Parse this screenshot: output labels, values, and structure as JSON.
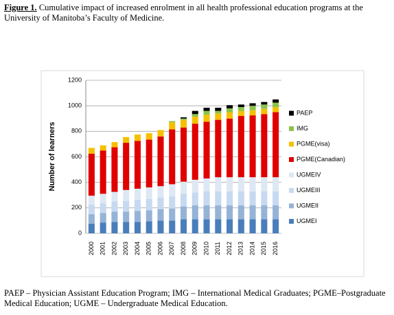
{
  "caption": {
    "label": "Figure 1.",
    "text": "Cumulative impact of increased enrolment in all health professional education programs at the University of Manitoba’s Faculty of Medicine."
  },
  "chart_data": {
    "type": "stacked_bar",
    "y_label": "Number of learners",
    "categories": [
      "2000",
      "2001",
      "2002",
      "2003",
      "2004",
      "2005",
      "2006",
      "2007",
      "2008",
      "2009",
      "2010",
      "2011",
      "2012",
      "2013",
      "2014",
      "2015",
      "2016"
    ],
    "series": [
      {
        "name": "UGMEI",
        "color": "#4a7ebb",
        "values": [
          75,
          85,
          90,
          90,
          90,
          95,
          100,
          100,
          110,
          110,
          110,
          110,
          110,
          110,
          110,
          110,
          110
        ]
      },
      {
        "name": "UGMEII",
        "color": "#95b3d7",
        "values": [
          75,
          75,
          80,
          80,
          85,
          85,
          90,
          95,
          100,
          110,
          110,
          110,
          110,
          110,
          110,
          110,
          110
        ]
      },
      {
        "name": "UGMEIII",
        "color": "#c6d9f1",
        "values": [
          75,
          75,
          80,
          85,
          90,
          90,
          90,
          95,
          100,
          100,
          110,
          110,
          110,
          110,
          110,
          110,
          110
        ]
      },
      {
        "name": "UGMEIV",
        "color": "#dde8f4",
        "values": [
          70,
          75,
          75,
          85,
          85,
          90,
          90,
          95,
          95,
          100,
          100,
          110,
          110,
          110,
          110,
          110,
          110
        ]
      },
      {
        "name": "PGME(Canadian)",
        "color": "#e00000",
        "values": [
          330,
          340,
          350,
          370,
          375,
          375,
          390,
          430,
          425,
          440,
          445,
          450,
          460,
          480,
          485,
          495,
          510
        ]
      },
      {
        "name": "PGME(visa)",
        "color": "#f5c000",
        "values": [
          45,
          40,
          40,
          45,
          50,
          50,
          50,
          55,
          60,
          55,
          55,
          50,
          50,
          40,
          40,
          40,
          40
        ]
      },
      {
        "name": "IMG",
        "color": "#8bc34a",
        "values": [
          0,
          0,
          0,
          0,
          0,
          0,
          0,
          10,
          10,
          20,
          30,
          20,
          30,
          30,
          35,
          35,
          35
        ]
      },
      {
        "name": "PAEP",
        "color": "#000000",
        "values": [
          0,
          0,
          0,
          0,
          0,
          0,
          0,
          0,
          10,
          25,
          25,
          25,
          25,
          20,
          20,
          20,
          25
        ]
      }
    ],
    "ylim": [
      0,
      1200
    ],
    "yticks": [
      0,
      200,
      400,
      600,
      800,
      1000,
      1200
    ],
    "grid": true
  },
  "footnote": "PAEP – Physician Assistant Education Program; IMG – International Medical Graduates; PGME–Postgraduate Medical Education; UGME – Undergraduate Medical Education."
}
